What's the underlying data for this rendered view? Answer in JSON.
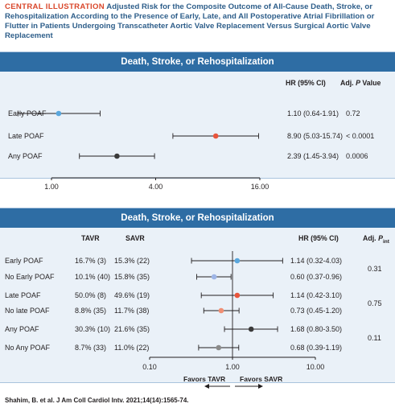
{
  "header": {
    "label": "CENTRAL ILLUSTRATION",
    "text": "Adjusted Risk for the Composite Outcome of All-Cause Death, Stroke, or Rehospitalization According to the Presence of Early, Late, and All Postoperative Atrial Fibrillation or Flutter in Patients Undergoing Transcatheter Aortic Valve Replacement Versus Surgical Aortic Valve Replacement"
  },
  "footer": {
    "citation": "Shahim, B. et al. J Am Coll Cardiol Intv. 2021;14(14):1565-74."
  },
  "colors": {
    "band": "#2e6da4",
    "panel": "#eaf1f8",
    "blue": "#5aa7dd",
    "red": "#e8553c",
    "dark": "#3a3a3a",
    "salmon": "#f08f74",
    "lavender": "#9eb5e6",
    "gray": "#8a8a8a"
  },
  "chart_data": [
    {
      "type": "forest",
      "title": "Death, Stroke, or Rehospitalization",
      "columns": {
        "hr": "HR (95% CI)",
        "p_prefix": "Adj. ",
        "p_italic": "P",
        "p_suffix": " Value"
      },
      "x_scale": "log",
      "xlim": [
        1,
        16
      ],
      "ticks": [
        {
          "value": 1,
          "label": "1.00"
        },
        {
          "value": 4,
          "label": "4.00"
        },
        {
          "value": 16,
          "label": "16.00"
        }
      ],
      "rows": [
        {
          "label": "Early POAF",
          "hr": 1.1,
          "lo": 0.64,
          "hi": 1.91,
          "hr_text": "1.10 (0.64-1.91)",
          "p": "0.72",
          "color": "#5aa7dd"
        },
        {
          "label": "Late POAF",
          "hr": 8.9,
          "lo": 5.03,
          "hi": 15.74,
          "hr_text": "8.90 (5.03-15.74)",
          "p": "< 0.0001",
          "color": "#e8553c"
        },
        {
          "label": "Any POAF",
          "hr": 2.39,
          "lo": 1.45,
          "hi": 3.94,
          "hr_text": "2.39 (1.45-3.94)",
          "p": "0.0006",
          "color": "#3a3a3a"
        }
      ]
    },
    {
      "type": "forest",
      "title": "Death, Stroke, or Rehospitalization",
      "columns": {
        "tavr": "TAVR",
        "savr": "SAVR",
        "hr": "HR (95% CI)",
        "p_prefix": "Adj. ",
        "p_italic": "P",
        "p_sub": "int"
      },
      "x_scale": "log",
      "xlim": [
        0.1,
        10
      ],
      "ticks": [
        {
          "value": 0.1,
          "label": "0.10"
        },
        {
          "value": 1,
          "label": "1.00"
        },
        {
          "value": 10,
          "label": "10.00"
        }
      ],
      "favors_left": "Favors TAVR",
      "favors_right": "Favors SAVR",
      "rows": [
        {
          "label": "Early POAF",
          "tavr": "16.7% (3)",
          "savr": "15.3% (22)",
          "hr": 1.14,
          "lo": 0.32,
          "hi": 4.03,
          "hr_text": "1.14 (0.32-4.03)",
          "color": "#5aa7dd"
        },
        {
          "label": "No Early POAF",
          "tavr": "10.1% (40)",
          "savr": "15.8% (35)",
          "hr": 0.6,
          "lo": 0.37,
          "hi": 0.96,
          "hr_text": "0.60 (0.37-0.96)",
          "color": "#9eb5e6"
        },
        {
          "label": "Late POAF",
          "tavr": "50.0% (8)",
          "savr": "49.6% (19)",
          "hr": 1.14,
          "lo": 0.42,
          "hi": 3.1,
          "hr_text": "1.14 (0.42-3.10)",
          "color": "#e8553c"
        },
        {
          "label": "No late POAF",
          "tavr": "8.8% (35)",
          "savr": "11.7% (38)",
          "hr": 0.73,
          "lo": 0.45,
          "hi": 1.2,
          "hr_text": "0.73 (0.45-1.20)",
          "color": "#f08f74"
        },
        {
          "label": "Any POAF",
          "tavr": "30.3% (10)",
          "savr": "21.6% (35)",
          "hr": 1.68,
          "lo": 0.8,
          "hi": 3.5,
          "hr_text": "1.68 (0.80-3.50)",
          "color": "#3a3a3a"
        },
        {
          "label": "No Any POAF",
          "tavr": "8.7% (33)",
          "savr": "11.0% (22)",
          "hr": 0.68,
          "lo": 0.39,
          "hi": 1.19,
          "hr_text": "0.68 (0.39-1.19)",
          "color": "#8a8a8a"
        }
      ],
      "p_interaction": [
        "0.31",
        "0.75",
        "0.11"
      ]
    }
  ]
}
